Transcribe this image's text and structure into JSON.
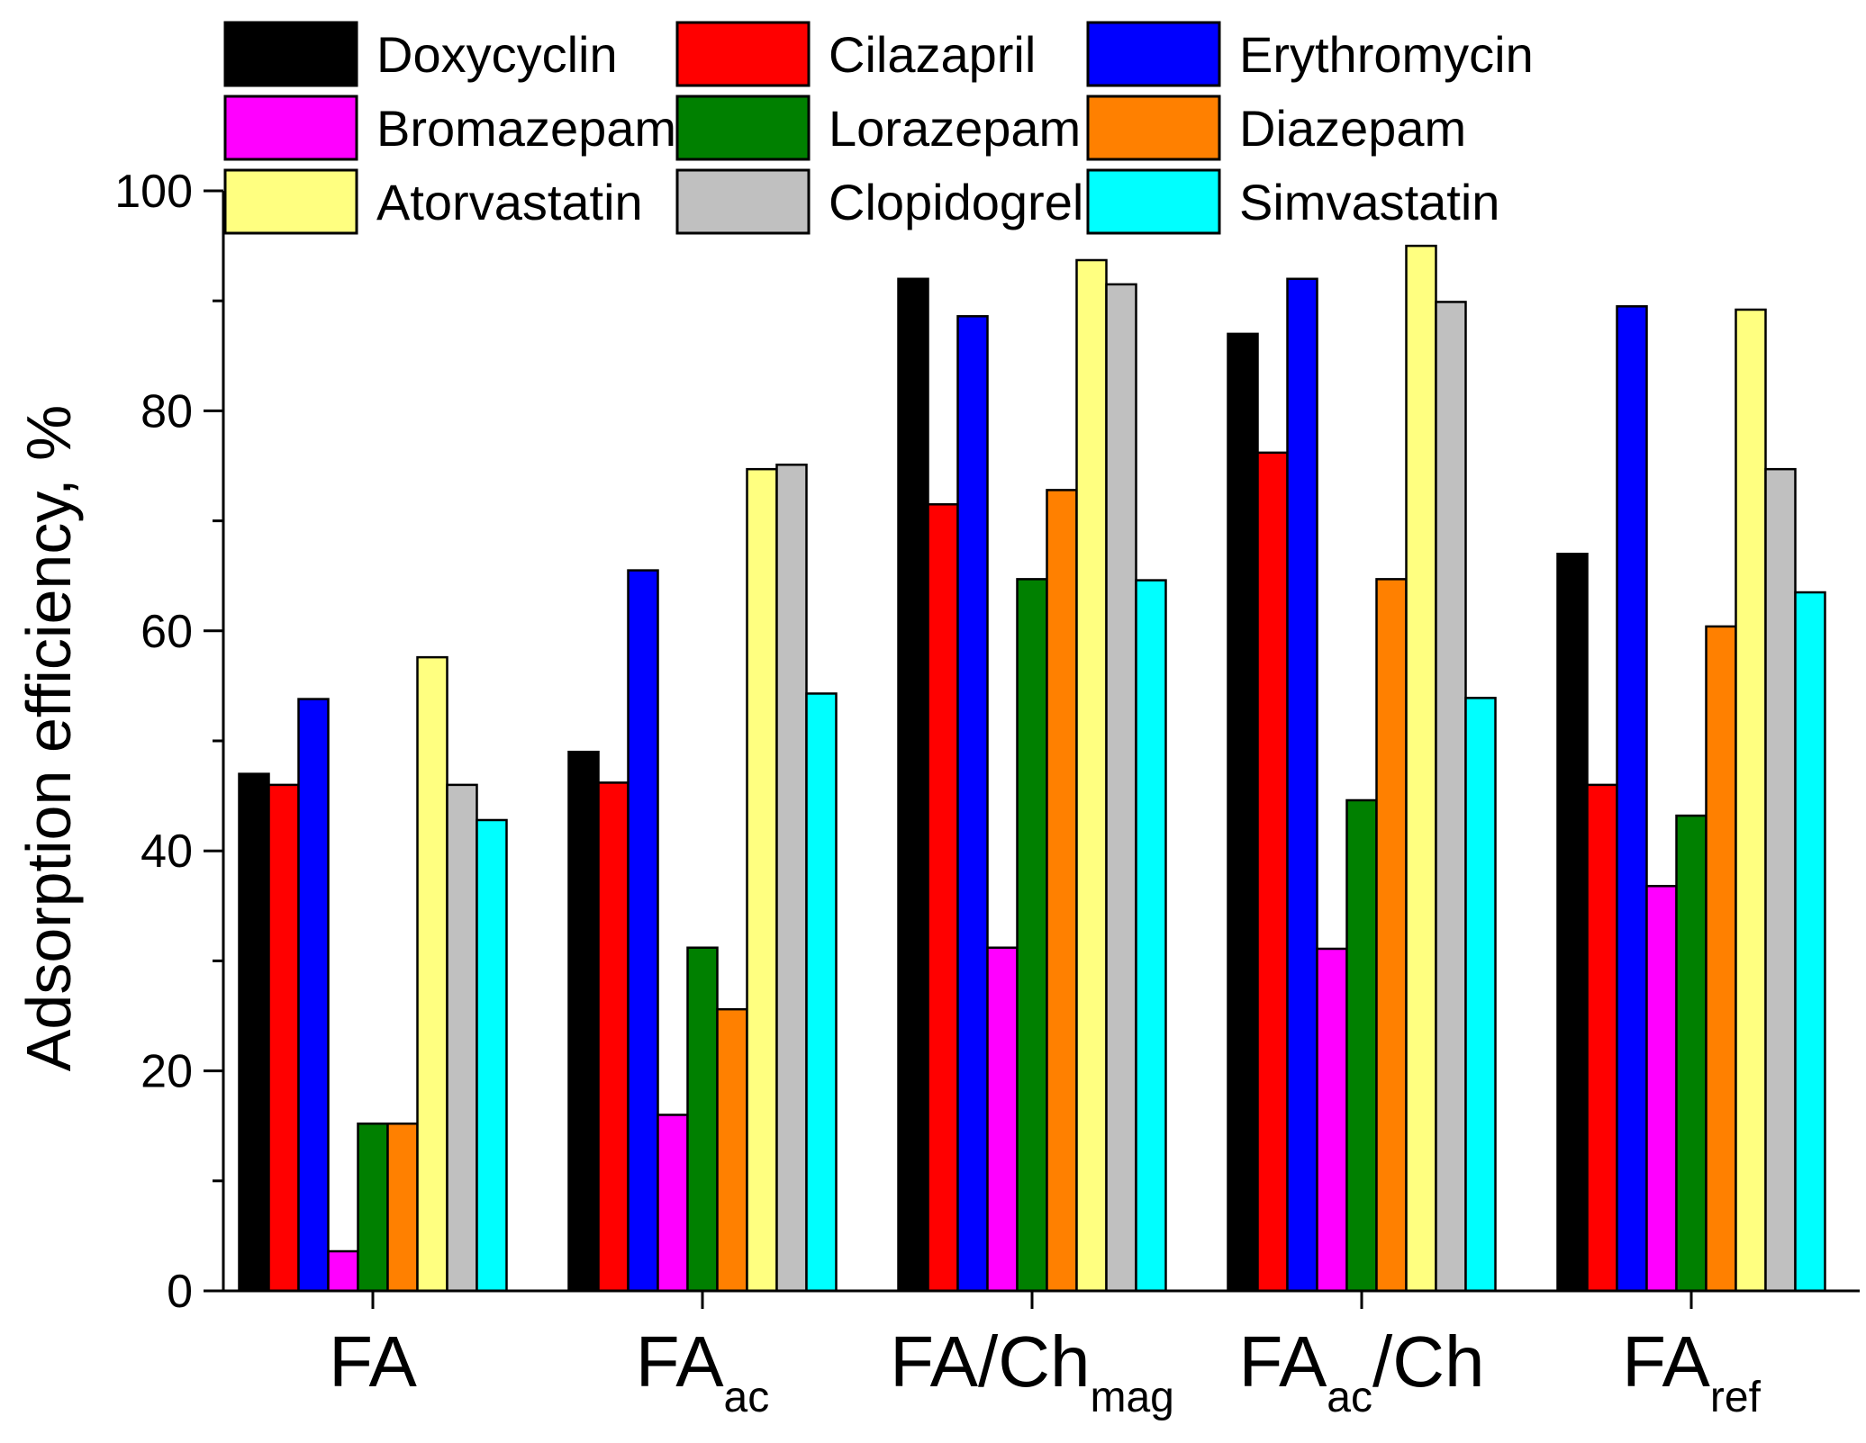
{
  "chart_data": {
    "type": "bar",
    "title": "",
    "xlabel": "",
    "ylabel": "Adsorption efficiency, %",
    "ylim": [
      0,
      100
    ],
    "yticks": [
      0,
      20,
      40,
      60,
      80,
      100
    ],
    "grid": false,
    "legend_position": "top",
    "categories": [
      {
        "base": "FA",
        "sub": "",
        "after": ""
      },
      {
        "base": "FA",
        "sub": "ac",
        "after": ""
      },
      {
        "base": "FA/Ch",
        "sub": "mag",
        "after": ""
      },
      {
        "base": "FA",
        "sub": "ac",
        "after": "/Ch"
      },
      {
        "base": "FA",
        "sub": "ref",
        "after": ""
      }
    ],
    "series": [
      {
        "name": "Doxycyclin",
        "color": "#000000",
        "values": [
          47,
          49,
          92,
          87,
          67
        ]
      },
      {
        "name": "Cilazapril",
        "color": "#ff0000",
        "values": [
          46,
          46.2,
          71.5,
          76.2,
          46
        ]
      },
      {
        "name": "Erythromycin",
        "color": "#0000ff",
        "values": [
          53.8,
          65.5,
          88.6,
          92,
          89.5
        ]
      },
      {
        "name": "Bromazepam",
        "color": "#ff00ff",
        "values": [
          3.6,
          16,
          31.2,
          31.1,
          36.8
        ]
      },
      {
        "name": "Lorazepam",
        "color": "#008000",
        "values": [
          15.2,
          31.2,
          64.7,
          44.6,
          43.2
        ]
      },
      {
        "name": "Diazepam",
        "color": "#ff8000",
        "values": [
          15.2,
          25.6,
          72.8,
          64.7,
          60.4
        ]
      },
      {
        "name": "Atorvastatin",
        "color": "#ffff80",
        "values": [
          57.6,
          74.7,
          93.7,
          95,
          89.2
        ]
      },
      {
        "name": "Clopidogrel",
        "color": "#c0c0c0",
        "values": [
          46,
          75.1,
          91.5,
          89.9,
          74.7
        ]
      },
      {
        "name": "Simvastatin",
        "color": "#00ffff",
        "values": [
          42.8,
          54.3,
          64.6,
          53.9,
          63.5
        ]
      }
    ]
  }
}
